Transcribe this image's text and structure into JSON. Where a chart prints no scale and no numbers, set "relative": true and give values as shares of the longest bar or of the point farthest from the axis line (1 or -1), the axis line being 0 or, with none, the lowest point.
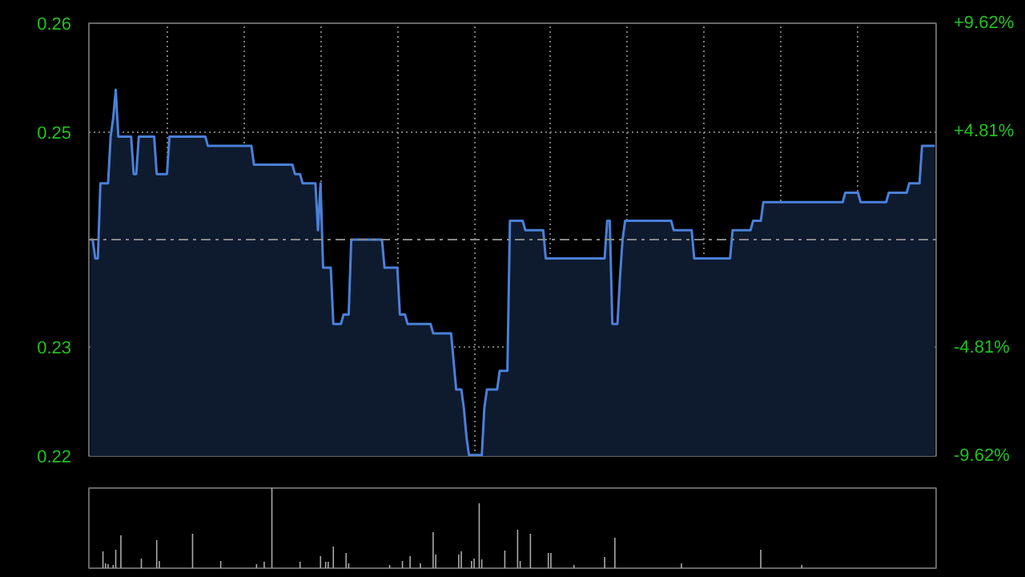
{
  "chart_data": [
    {
      "type": "area",
      "categories": [
        null,
        null,
        null,
        null,
        null,
        null,
        null,
        null,
        null,
        null,
        null,
        null,
        null,
        null,
        null,
        null,
        null,
        null,
        null,
        null,
        null,
        null,
        null,
        null,
        null,
        null,
        null,
        null,
        null,
        null,
        null,
        null,
        null,
        null,
        null,
        null,
        null,
        null,
        null,
        null,
        null,
        null,
        null,
        null,
        null,
        null,
        null,
        null,
        null,
        null,
        null,
        null,
        null,
        null,
        null,
        null,
        null,
        null,
        null,
        null,
        null,
        null,
        null,
        null,
        null,
        null,
        null,
        null,
        null,
        null,
        null,
        null,
        null,
        null,
        null,
        null,
        null,
        null,
        null,
        null,
        null,
        null,
        null,
        null,
        null,
        null,
        null,
        null,
        null,
        null,
        null,
        null,
        null,
        null,
        null,
        null,
        null,
        null,
        null,
        null,
        null,
        null,
        null,
        null,
        null,
        null,
        null,
        null,
        null,
        null,
        null,
        null,
        null,
        null,
        null,
        null,
        null,
        null,
        null,
        null,
        null,
        null,
        null,
        null,
        null,
        null,
        null,
        null,
        null,
        null,
        null,
        null,
        null,
        null,
        null,
        null,
        null,
        null,
        null,
        null,
        null,
        null,
        null,
        null,
        null,
        null,
        null,
        null,
        null,
        null,
        null,
        null,
        null,
        null,
        null,
        null,
        null,
        null,
        null,
        null,
        null,
        null,
        null,
        null,
        null,
        null,
        null,
        null,
        null,
        null,
        null,
        null,
        null,
        null,
        null,
        null,
        null,
        null,
        null,
        null,
        null,
        null,
        null,
        null,
        null,
        null,
        null,
        null,
        null,
        null,
        null,
        null,
        null,
        null,
        null,
        null,
        null,
        null,
        null,
        null,
        null,
        null,
        null,
        null,
        null,
        null,
        null,
        null,
        null,
        null,
        null,
        null,
        null,
        null,
        null,
        null,
        null,
        null,
        null,
        null,
        null,
        null,
        null,
        null,
        null,
        null,
        null,
        null,
        null,
        null,
        null,
        null,
        null,
        null,
        null,
        null,
        null,
        null,
        null,
        null,
        null,
        null,
        null,
        null,
        null,
        null,
        null,
        null,
        null,
        null,
        null,
        null,
        null,
        null,
        null,
        null,
        null,
        null,
        null,
        null,
        null,
        null,
        null,
        null,
        null,
        null,
        null,
        null,
        null,
        null,
        null,
        null,
        null,
        null,
        null,
        null,
        null,
        null,
        null,
        null,
        null,
        null,
        null,
        null,
        null,
        null,
        null,
        null,
        null,
        null,
        null,
        null,
        null,
        null,
        null,
        null,
        null,
        null,
        null,
        null,
        null,
        null,
        null,
        null,
        null,
        null,
        null,
        null,
        null,
        null,
        null,
        null,
        null,
        null,
        null,
        null,
        null,
        null,
        null,
        null,
        null,
        null,
        null,
        null,
        null,
        null,
        null,
        null,
        null,
        null,
        null
      ],
      "series": [
        {
          "color": "#4a80d8",
          "values": [
            0.24,
            0.24,
            0.238,
            0.238,
            0.246,
            0.246,
            0.246,
            0.246,
            0.251,
            0.253,
            0.256,
            0.251,
            0.251,
            0.251,
            0.251,
            0.251,
            0.251,
            0.247,
            0.247,
            0.251,
            0.251,
            0.251,
            0.251,
            0.251,
            0.251,
            0.251,
            0.247,
            0.247,
            0.247,
            0.247,
            0.247,
            0.251,
            0.251,
            0.251,
            0.251,
            0.251,
            0.251,
            0.251,
            0.251,
            0.251,
            0.251,
            0.251,
            0.251,
            0.251,
            0.251,
            0.251,
            0.25,
            0.25,
            0.25,
            0.25,
            0.25,
            0.25,
            0.25,
            0.25,
            0.25,
            0.25,
            0.25,
            0.25,
            0.25,
            0.25,
            0.25,
            0.25,
            0.25,
            0.25,
            0.248,
            0.248,
            0.248,
            0.248,
            0.248,
            0.248,
            0.248,
            0.248,
            0.248,
            0.248,
            0.248,
            0.248,
            0.248,
            0.248,
            0.248,
            0.248,
            0.247,
            0.247,
            0.247,
            0.246,
            0.246,
            0.246,
            0.246,
            0.246,
            0.246,
            0.241,
            0.246,
            0.237,
            0.237,
            0.237,
            0.237,
            0.231,
            0.231,
            0.231,
            0.231,
            0.232,
            0.232,
            0.232,
            0.24,
            0.24,
            0.24,
            0.24,
            0.24,
            0.24,
            0.24,
            0.24,
            0.24,
            0.24,
            0.24,
            0.24,
            0.24,
            0.237,
            0.237,
            0.237,
            0.237,
            0.237,
            0.237,
            0.232,
            0.232,
            0.232,
            0.231,
            0.231,
            0.231,
            0.231,
            0.231,
            0.231,
            0.231,
            0.231,
            0.231,
            0.231,
            0.23,
            0.23,
            0.23,
            0.23,
            0.23,
            0.23,
            0.23,
            0.23,
            0.227,
            0.224,
            0.224,
            0.224,
            0.222,
            0.219,
            0.217,
            0.217,
            0.217,
            0.217,
            0.217,
            0.217,
            0.222,
            0.224,
            0.224,
            0.224,
            0.224,
            0.224,
            0.226,
            0.226,
            0.226,
            0.226,
            0.242,
            0.242,
            0.242,
            0.242,
            0.242,
            0.242,
            0.241,
            0.241,
            0.241,
            0.241,
            0.241,
            0.241,
            0.241,
            0.241,
            0.238,
            0.238,
            0.238,
            0.238,
            0.238,
            0.238,
            0.238,
            0.238,
            0.238,
            0.238,
            0.238,
            0.238,
            0.238,
            0.238,
            0.238,
            0.238,
            0.238,
            0.238,
            0.238,
            0.238,
            0.238,
            0.238,
            0.238,
            0.238,
            0.242,
            0.242,
            0.231,
            0.231,
            0.231,
            0.236,
            0.24,
            0.242,
            0.242,
            0.242,
            0.242,
            0.242,
            0.242,
            0.242,
            0.242,
            0.242,
            0.242,
            0.242,
            0.242,
            0.242,
            0.242,
            0.242,
            0.242,
            0.242,
            0.242,
            0.242,
            0.241,
            0.241,
            0.241,
            0.241,
            0.241,
            0.241,
            0.241,
            0.241,
            0.238,
            0.238,
            0.238,
            0.238,
            0.238,
            0.238,
            0.238,
            0.238,
            0.238,
            0.238,
            0.238,
            0.238,
            0.238,
            0.238,
            0.238,
            0.241,
            0.241,
            0.241,
            0.241,
            0.241,
            0.241,
            0.241,
            0.241,
            0.242,
            0.242,
            0.242,
            0.242,
            0.244,
            0.244,
            0.244,
            0.244,
            0.244,
            0.244,
            0.244,
            0.244,
            0.244,
            0.244,
            0.244,
            0.244,
            0.244,
            0.244,
            0.244,
            0.244,
            0.244,
            0.244,
            0.244,
            0.244,
            0.244,
            0.244,
            0.244,
            0.244,
            0.244,
            0.244,
            0.244,
            0.244,
            0.244,
            0.244,
            0.244,
            0.244,
            0.245,
            0.245,
            0.245,
            0.245,
            0.245,
            0.245,
            0.244,
            0.244,
            0.244,
            0.244,
            0.244,
            0.244,
            0.244,
            0.244,
            0.244,
            0.244,
            0.244,
            0.245,
            0.245,
            0.245,
            0.245,
            0.245,
            0.245,
            0.245,
            0.245,
            0.246,
            0.246,
            0.246,
            0.246,
            0.246,
            0.25,
            0.25,
            0.25,
            0.25,
            0.25,
            0.25
          ]
        }
      ],
      "ylim": [
        0.2169,
        0.2631
      ],
      "yticks": [
        {
          "value": 0.2169,
          "label": "0.22"
        },
        {
          "value": 0.2285,
          "label": "0.23"
        },
        {
          "value": 0.2515,
          "label": "0.25"
        },
        {
          "value": 0.2631,
          "label": "0.26"
        }
      ],
      "y2lim": [
        -9.62,
        9.62
      ],
      "y2ticks": [
        {
          "value": -9.62,
          "label": "-9.62%"
        },
        {
          "value": -4.81,
          "label": "-4.81%"
        },
        {
          "value": 4.81,
          "label": "+4.81%"
        },
        {
          "value": 9.62,
          "label": "+9.62%"
        }
      ],
      "ref_lines": [
        {
          "axis": "y",
          "value": 0.24,
          "color": "#888888",
          "line_style": "dashed"
        }
      ],
      "grid": true,
      "tick_labels": "y"
    },
    {
      "type": "bar",
      "relative": true,
      "tick_labels": false,
      "categories": [
        null,
        null,
        null,
        null,
        null,
        null,
        null,
        null,
        null,
        null,
        null,
        null,
        null,
        null,
        null,
        null,
        null,
        null,
        null,
        null,
        null,
        null,
        null,
        null,
        null,
        null,
        null,
        null,
        null,
        null,
        null,
        null,
        null,
        null,
        null,
        null,
        null,
        null,
        null,
        null,
        null,
        null,
        null,
        null,
        null,
        null,
        null,
        null,
        null,
        null,
        null,
        null,
        null,
        null,
        null,
        null,
        null,
        null,
        null,
        null,
        null,
        null,
        null,
        null,
        null,
        null,
        null,
        null,
        null,
        null,
        null,
        null,
        null,
        null,
        null,
        null,
        null,
        null,
        null,
        null,
        null,
        null,
        null,
        null,
        null,
        null,
        null,
        null,
        null,
        null,
        null,
        null,
        null,
        null,
        null,
        null,
        null,
        null,
        null,
        null,
        null,
        null,
        null,
        null,
        null,
        null,
        null,
        null,
        null,
        null,
        null,
        null,
        null,
        null,
        null,
        null,
        null,
        null,
        null,
        null,
        null,
        null,
        null,
        null,
        null,
        null,
        null,
        null,
        null,
        null,
        null,
        null,
        null,
        null,
        null,
        null,
        null,
        null,
        null,
        null,
        null,
        null,
        null,
        null,
        null,
        null,
        null,
        null,
        null,
        null,
        null,
        null,
        null,
        null,
        null,
        null,
        null,
        null,
        null,
        null,
        null,
        null,
        null,
        null,
        null,
        null,
        null,
        null,
        null,
        null,
        null,
        null,
        null,
        null,
        null,
        null,
        null,
        null,
        null,
        null,
        null,
        null,
        null,
        null,
        null,
        null,
        null,
        null,
        null,
        null,
        null,
        null,
        null,
        null,
        null,
        null,
        null,
        null,
        null,
        null,
        null,
        null,
        null,
        null,
        null,
        null,
        null,
        null,
        null,
        null,
        null,
        null,
        null,
        null,
        null,
        null,
        null,
        null,
        null,
        null,
        null,
        null,
        null,
        null,
        null,
        null,
        null,
        null,
        null,
        null,
        null,
        null,
        null,
        null,
        null,
        null,
        null,
        null,
        null,
        null,
        null,
        null,
        null,
        null,
        null,
        null,
        null,
        null,
        null,
        null,
        null,
        null,
        null,
        null,
        null,
        null,
        null,
        null,
        null,
        null,
        null,
        null,
        null,
        null,
        null,
        null,
        null,
        null,
        null,
        null,
        null,
        null,
        null,
        null,
        null,
        null,
        null,
        null,
        null,
        null,
        null,
        null,
        null,
        null,
        null,
        null,
        null,
        null,
        null,
        null,
        null,
        null,
        null,
        null,
        null,
        null,
        null,
        null,
        null,
        null,
        null,
        null,
        null,
        null,
        null,
        null,
        null,
        null,
        null,
        null,
        null,
        null,
        null,
        null,
        null,
        null,
        null,
        null,
        null,
        null,
        null,
        null,
        null,
        null,
        null,
        null,
        null,
        null,
        null,
        null,
        null
      ],
      "series": [
        {
          "color": "#aaaaaa",
          "values": [
            null,
            null,
            null,
            null,
            null,
            0.21,
            0.06,
            0.05,
            null,
            0.04,
            0.23,
            null,
            0.41,
            null,
            null,
            null,
            null,
            null,
            null,
            null,
            0.12,
            null,
            null,
            null,
            null,
            null,
            0.35,
            0.09,
            null,
            null,
            null,
            null,
            null,
            null,
            null,
            null,
            null,
            null,
            null,
            null,
            0.43,
            null,
            null,
            null,
            null,
            null,
            null,
            null,
            null,
            null,
            null,
            0.09,
            null,
            null,
            null,
            null,
            null,
            null,
            null,
            null,
            null,
            null,
            null,
            null,
            null,
            0.05,
            null,
            null,
            0.08,
            null,
            null,
            1,
            null,
            null,
            null,
            null,
            null,
            null,
            null,
            null,
            null,
            null,
            0.08,
            null,
            null,
            null,
            null,
            null,
            null,
            null,
            0.15,
            null,
            0.08,
            0.08,
            null,
            0.27,
            null,
            null,
            null,
            null,
            0.19,
            0.06,
            null,
            null,
            null,
            null,
            null,
            null,
            null,
            null,
            null,
            null,
            null,
            null,
            null,
            null,
            null,
            0.04,
            null,
            null,
            null,
            null,
            0.09,
            null,
            null,
            0.15,
            null,
            null,
            null,
            0.06,
            null,
            null,
            null,
            null,
            0.45,
            0.17,
            null,
            null,
            null,
            null,
            null,
            null,
            null,
            null,
            0.17,
            0.21,
            null,
            null,
            null,
            0.09,
            0.12,
            null,
            0.81,
            0.11,
            null,
            null,
            null,
            null,
            null,
            null,
            null,
            null,
            0.22,
            null,
            null,
            null,
            null,
            0.48,
            0.09,
            null,
            null,
            null,
            0.43,
            null,
            null,
            null,
            null,
            null,
            null,
            0.19,
            0.19,
            null,
            null,
            null,
            null,
            null,
            null,
            null,
            null,
            0.04,
            null,
            null,
            null,
            null,
            null,
            null,
            null,
            null,
            null,
            null,
            null,
            0.14,
            null,
            null,
            null,
            0.38,
            null,
            null,
            null,
            null,
            null,
            null,
            null,
            null,
            null,
            null,
            null,
            null,
            null,
            null,
            null,
            null,
            null,
            null,
            null,
            null,
            null,
            null,
            null,
            null,
            null,
            0.06,
            null,
            null,
            null,
            null,
            null,
            null,
            null,
            null,
            null,
            null,
            null,
            null,
            null,
            null,
            null,
            null,
            null,
            null,
            null,
            null,
            null,
            null,
            null,
            null,
            null,
            null,
            null,
            null,
            null,
            null,
            0.23,
            null,
            null,
            null,
            null,
            null,
            null,
            null,
            null,
            null,
            null,
            null,
            null,
            null,
            null,
            null,
            0.04,
            null,
            null,
            null,
            null,
            null,
            null,
            null,
            null,
            null,
            null,
            null,
            null,
            null,
            null,
            null,
            null,
            null,
            null,
            null,
            null,
            null,
            null,
            null,
            null,
            null,
            null,
            null,
            null,
            null,
            null,
            null,
            null,
            null,
            null,
            null,
            null,
            null,
            null,
            null,
            null,
            null,
            null,
            null,
            null,
            null,
            null,
            null,
            null,
            null,
            null,
            null,
            null
          ]
        }
      ]
    }
  ]
}
